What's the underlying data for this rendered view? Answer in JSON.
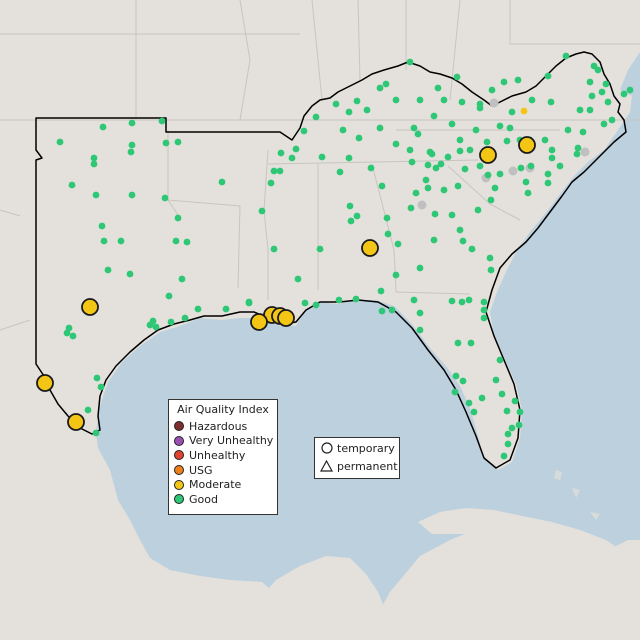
{
  "legend_aqi": {
    "title": "Air Quality Index",
    "items": [
      {
        "label": "Hazardous",
        "color": "#7e2e2e"
      },
      {
        "label": "Very Unhealthy",
        "color": "#9b4fb5"
      },
      {
        "label": "Unhealthy",
        "color": "#e0442c"
      },
      {
        "label": "USG",
        "color": "#f07f17"
      },
      {
        "label": "Moderate",
        "color": "#f3c615"
      },
      {
        "label": "Good",
        "color": "#2ec776"
      }
    ]
  },
  "legend_type": {
    "items": [
      {
        "label": "temporary",
        "shape": "circle"
      },
      {
        "label": "permanent",
        "shape": "triangle"
      }
    ]
  },
  "colors": {
    "land": "#e4e1dc",
    "water": "#bdd0de",
    "good": "#2ec776",
    "moderate": "#f3c615",
    "monitor_gray": "#c0c0c0",
    "region_outline": "#000000",
    "state_borders": "#c8c4bf"
  }
}
